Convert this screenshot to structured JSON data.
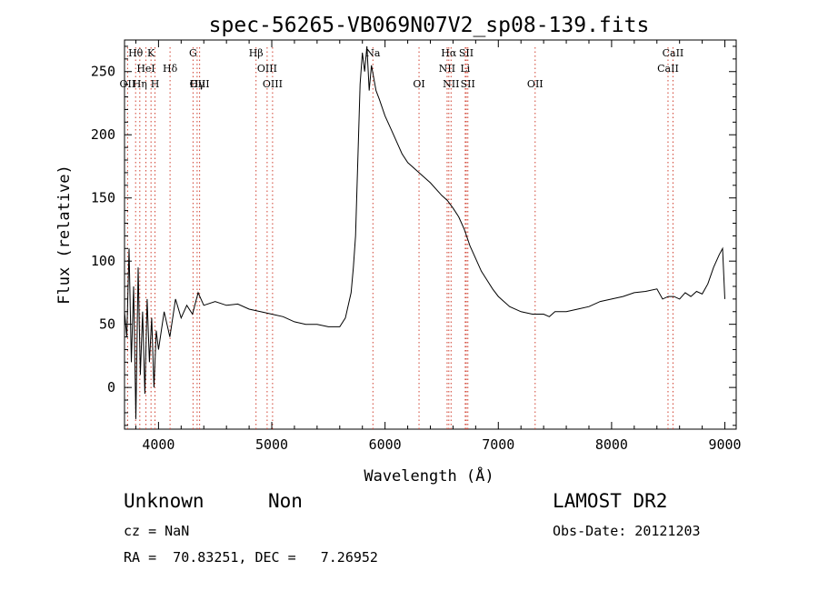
{
  "chart_data": {
    "type": "line",
    "title": "spec-56265-VB069N07V2_sp08-139.fits",
    "xlabel": "Wavelength (Å)",
    "ylabel": "Flux (relative)",
    "xlim": [
      3700,
      9100
    ],
    "ylim": [
      -33,
      275
    ],
    "xticks": [
      4000,
      5000,
      6000,
      7000,
      8000,
      9000
    ],
    "yticks": [
      0,
      50,
      100,
      150,
      200,
      250
    ],
    "grid": false,
    "series": [
      {
        "x": [
          3700,
          3720,
          3740,
          3760,
          3780,
          3800,
          3820,
          3840,
          3860,
          3880,
          3900,
          3920,
          3940,
          3960,
          3980,
          4000,
          4050,
          4100,
          4150,
          4200,
          4250,
          4300,
          4350,
          4400,
          4500,
          4600,
          4700,
          4800,
          4900,
          5000,
          5100,
          5200,
          5300,
          5400,
          5500,
          5600,
          5650,
          5700,
          5720,
          5740,
          5760,
          5780,
          5800,
          5820,
          5840,
          5860,
          5880,
          5900,
          5920,
          5950,
          6000,
          6050,
          6100,
          6150,
          6200,
          6300,
          6400,
          6500,
          6550,
          6600,
          6650,
          6700,
          6750,
          6800,
          6850,
          6900,
          6950,
          7000,
          7100,
          7200,
          7300,
          7400,
          7450,
          7500,
          7600,
          7700,
          7800,
          7900,
          8000,
          8100,
          8200,
          8300,
          8400,
          8450,
          8500,
          8550,
          8600,
          8650,
          8700,
          8750,
          8800,
          8850,
          8900,
          8950,
          8980,
          9000
        ],
        "y": [
          60,
          40,
          110,
          20,
          80,
          -25,
          95,
          10,
          60,
          -5,
          70,
          20,
          55,
          0,
          45,
          30,
          60,
          40,
          70,
          55,
          65,
          58,
          75,
          65,
          68,
          65,
          66,
          62,
          60,
          58,
          56,
          52,
          50,
          50,
          48,
          48,
          55,
          75,
          95,
          120,
          180,
          240,
          265,
          250,
          270,
          235,
          255,
          245,
          235,
          228,
          215,
          205,
          195,
          185,
          178,
          170,
          162,
          152,
          148,
          142,
          135,
          125,
          112,
          102,
          92,
          85,
          78,
          72,
          64,
          60,
          58,
          58,
          56,
          60,
          60,
          62,
          64,
          68,
          70,
          72,
          75,
          76,
          78,
          70,
          72,
          72,
          70,
          75,
          72,
          76,
          74,
          82,
          95,
          105,
          110,
          70
        ]
      }
    ],
    "emission_lines": [
      {
        "label": "Hθ",
        "x": 3798
      },
      {
        "label": "K",
        "x": 3934
      },
      {
        "label": "HeI",
        "x": 3889
      },
      {
        "label": "Hδ",
        "x": 4102
      },
      {
        "label": "OII",
        "x": 3727
      },
      {
        "label": "Hη",
        "x": 3835
      },
      {
        "label": "H",
        "x": 3969
      },
      {
        "label": "G",
        "x": 4305
      },
      {
        "label": "OIII",
        "x": 4363
      },
      {
        "label": "Hγ",
        "x": 4341
      },
      {
        "label": "Hβ",
        "x": 4861
      },
      {
        "label": "OIII",
        "x": 4959
      },
      {
        "label": "OIII",
        "x": 5007
      },
      {
        "label": "Na",
        "x": 5893
      },
      {
        "label": "OI",
        "x": 6300
      },
      {
        "label": "Hα",
        "x": 6563
      },
      {
        "label": "SII",
        "x": 6717
      },
      {
        "label": "NII",
        "x": 6548
      },
      {
        "label": "Li",
        "x": 6708
      },
      {
        "label": "NII",
        "x": 6583
      },
      {
        "label": "SII",
        "x": 6731
      },
      {
        "label": "OII",
        "x": 7325
      },
      {
        "label": "CaII",
        "x": 8542
      },
      {
        "label": "CaII",
        "x": 8498
      }
    ]
  },
  "footer": {
    "class_label": "Unknown",
    "subclass_label": "Non",
    "survey": "LAMOST DR2",
    "cz": "cz = NaN",
    "obs_date": "Obs-Date: 20121203",
    "radec": "RA =  70.83251, DEC =   7.26952"
  }
}
